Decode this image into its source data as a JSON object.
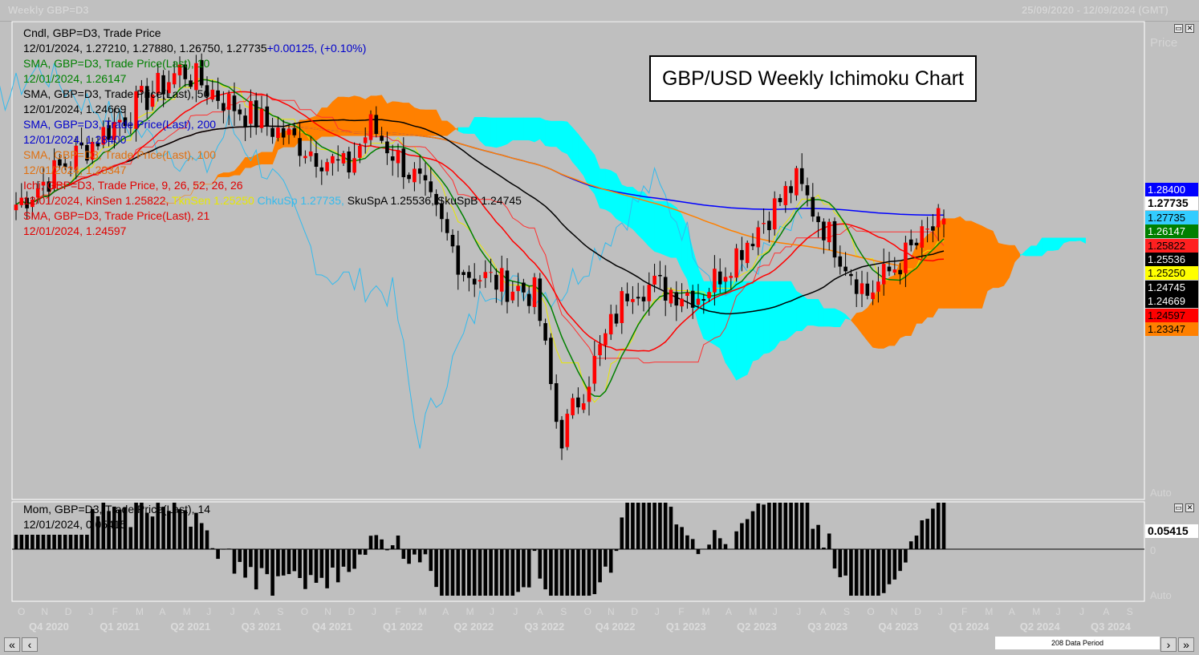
{
  "window": {
    "title": "Weekly GBP=D3",
    "date_range": "25/09/2020 - 12/09/2024 (GMT)"
  },
  "chart_title": "GBP/USD Weekly Ichimoku Chart",
  "legend": {
    "candle_label": "Cndl, GBP=D3, Trade Price",
    "candle_values": "12/01/2024, 1.27210, 1.27880, 1.26750, 1.27735",
    "candle_change": "+0.00125, (+0.10%)",
    "sma10_label": "SMA, GBP=D3, Trade Price(Last),  10",
    "sma10_value": "12/01/2024, 1.26147",
    "sma50_label": "SMA, GBP=D3, Trade Price(Last),  50",
    "sma50_value": "12/01/2024, 1.24669",
    "sma200_label": "SMA, GBP=D3, Trade Price(Last),  200",
    "sma200_value": "12/01/2024, 1.28400",
    "sma100_label": "SMA, GBP=D3, Trade Price(Last),  100",
    "sma100_value": "12/01/2024, 1.23347",
    "ichi_label": "Ichi, GBP=D3, Trade Price,  9, 26, 52, 26, 26",
    "ichi_date_kinsen": "12/01/2024, KinSen 1.25822,",
    "ichi_tkn": "TknSen 1.25250",
    "ichi_chku": "ChkuSp 1.27735,",
    "ichi_sku": "SkuSpA 1.25536, SkuSpB 1.24745",
    "sma21_label": "SMA, GBP=D3, Trade Price(Last),  21",
    "sma21_value": "12/01/2024, 1.24597"
  },
  "mom_legend": {
    "label": "Mom, GBP=D3, Trade Price(Last),  14",
    "value": "12/01/2024, 0.05415"
  },
  "price_scale": {
    "title": "Price",
    "auto": "Auto",
    "boxes": [
      {
        "text": "1.28400",
        "bg": "#0000ff",
        "fg": "#ffffff"
      },
      {
        "text": "1.27735",
        "bg": "#ffffff",
        "fg": "#000000"
      },
      {
        "text": "1.27735",
        "bg": "#33ccff",
        "fg": "#000000"
      },
      {
        "text": "1.26147",
        "bg": "#008000",
        "fg": "#ffffff"
      },
      {
        "text": "1.25822",
        "bg": "#ff2020",
        "fg": "#000000"
      },
      {
        "text": "1.25536",
        "bg": "#000000",
        "fg": "#ffffff"
      },
      {
        "text": "1.25250",
        "bg": "#ffff00",
        "fg": "#000000"
      },
      {
        "text": "1.24745",
        "bg": "#000000",
        "fg": "#ffffff"
      },
      {
        "text": "1.24669",
        "bg": "#000000",
        "fg": "#ffffff"
      },
      {
        "text": "1.24597",
        "bg": "#ff0000",
        "fg": "#000000"
      },
      {
        "text": "1.23347",
        "bg": "#ff8000",
        "fg": "#000000"
      }
    ]
  },
  "mom_scale": {
    "value_box": "0.05415",
    "zero": "0",
    "auto": "Auto"
  },
  "x_axis": {
    "months": [
      "O",
      "N",
      "D",
      "J",
      "F",
      "M",
      "A",
      "M",
      "J",
      "J",
      "A",
      "S",
      "O",
      "N",
      "D",
      "J",
      "F",
      "M",
      "A",
      "M",
      "J",
      "J",
      "A",
      "S",
      "O",
      "N",
      "D",
      "J",
      "F",
      "M",
      "A",
      "M",
      "J",
      "J",
      "A",
      "S",
      "O",
      "N",
      "D",
      "J",
      "F",
      "M",
      "A",
      "M",
      "J",
      "J",
      "A",
      "S"
    ],
    "quarters": [
      "Q4 2020",
      "Q1 2021",
      "Q2 2021",
      "Q3 2021",
      "Q4 2021",
      "Q1 2022",
      "Q2 2022",
      "Q3 2022",
      "Q4 2022",
      "Q1 2023",
      "Q2 2023",
      "Q3 2023",
      "Q4 2023",
      "Q1 2024",
      "Q2 2024",
      "Q3 2024"
    ]
  },
  "footer": {
    "data_period": "208 Data Period",
    "first_btn": "«",
    "prev_btn": "‹",
    "next_btn": "›",
    "last_btn": "»"
  },
  "colors": {
    "background": "#c0c0c0",
    "up_candle": "#ff0000",
    "down_candle": "#000000",
    "cloud_bull": "#ff8000",
    "cloud_bear": "#00ffff",
    "sma10": "#008000",
    "sma21": "#ff0000",
    "sma50": "#000000",
    "sma100": "#ff8000",
    "sma200": "#0000ff",
    "chikou": "#33bbee",
    "tenkan": "#e8e800",
    "kijun": "#ff3030"
  },
  "chart_data": {
    "type": "candlestick",
    "title": "GBP/USD Weekly Ichimoku Chart",
    "instrument": "GBP=D3",
    "timeframe": "Weekly",
    "last_bar": {
      "date": "12/01/2024",
      "open": 1.2721,
      "high": 1.2788,
      "low": 1.2675,
      "close": 1.27735,
      "change": 0.00125,
      "change_pct": 0.1
    },
    "anchors": [
      {
        "date": "2020-10",
        "close": 1.29
      },
      {
        "date": "2021-05",
        "close": 1.41
      },
      {
        "date": "2021-07",
        "close": 1.38
      },
      {
        "date": "2021-12",
        "close": 1.32
      },
      {
        "date": "2022-01",
        "close": 1.36
      },
      {
        "date": "2022-03",
        "close": 1.31
      },
      {
        "date": "2022-05",
        "close": 1.23
      },
      {
        "date": "2022-08",
        "close": 1.21
      },
      {
        "date": "2022-09",
        "close": 1.08
      },
      {
        "date": "2022-12",
        "close": 1.22
      },
      {
        "date": "2023-03",
        "close": 1.21
      },
      {
        "date": "2023-07",
        "close": 1.31
      },
      {
        "date": "2023-10",
        "close": 1.21
      },
      {
        "date": "2024-01",
        "close": 1.27735
      }
    ],
    "indicators": {
      "SMA10": 1.26147,
      "SMA21": 1.24597,
      "SMA50": 1.24669,
      "SMA100": 1.23347,
      "SMA200": 1.284,
      "Kijun": 1.25822,
      "Tenkan": 1.2525,
      "Chikou": 1.27735,
      "SenkouA": 1.25536,
      "SenkouB": 1.24745
    },
    "momentum": {
      "period": 14,
      "last": 0.05415
    },
    "x_range": [
      "2020-09-25",
      "2024-09-12"
    ],
    "bars": 208
  }
}
